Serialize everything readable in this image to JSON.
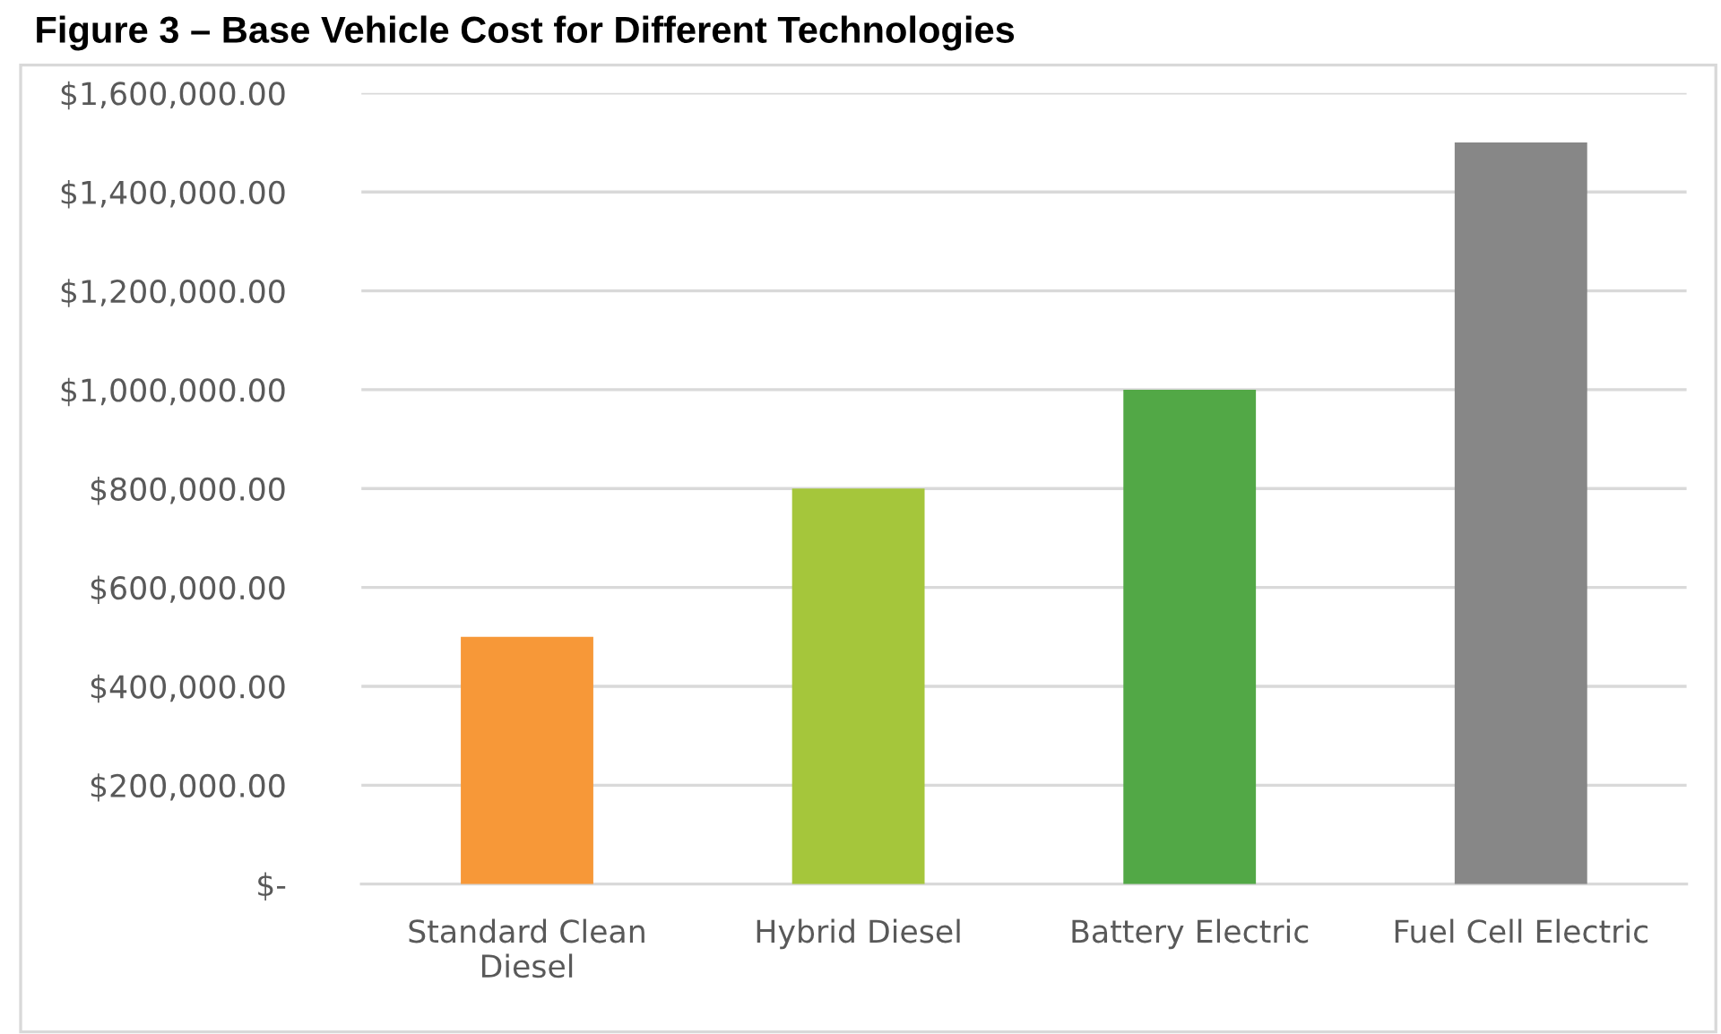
{
  "chart_data": {
    "type": "bar",
    "title": "Figure 3 – Base Vehicle Cost for Different Technologies",
    "categories": [
      "Standard Clean\nDiesel",
      "Hybrid Diesel",
      "Battery Electric",
      "Fuel Cell Electric"
    ],
    "values": [
      500000,
      800000,
      1000000,
      1500000
    ],
    "colors": [
      "#f79838",
      "#a5c63b",
      "#52a846",
      "#878787"
    ],
    "ylim": [
      0,
      1600000
    ],
    "yticks": [
      {
        "value": 0,
        "label": "$-"
      },
      {
        "value": 200000,
        "label": "$200,000.00"
      },
      {
        "value": 400000,
        "label": "$400,000.00"
      },
      {
        "value": 600000,
        "label": "$600,000.00"
      },
      {
        "value": 800000,
        "label": "$800,000.00"
      },
      {
        "value": 1000000,
        "label": "$1,000,000.00"
      },
      {
        "value": 1200000,
        "label": "$1,200,000.00"
      },
      {
        "value": 1400000,
        "label": "$1,400,000.00"
      },
      {
        "value": 1600000,
        "label": "$1,600,000.00"
      }
    ],
    "grid": "y",
    "legend": false
  }
}
